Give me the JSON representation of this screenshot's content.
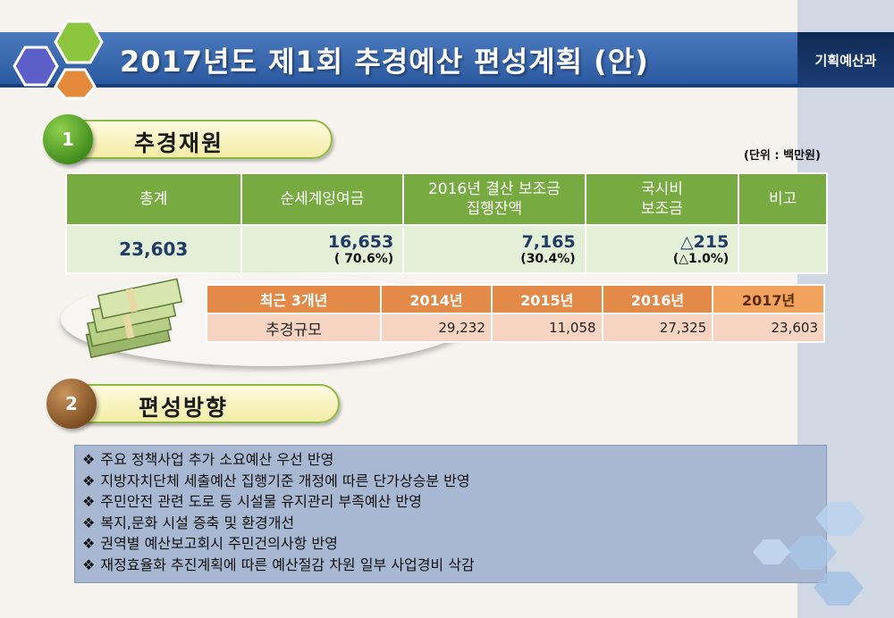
{
  "header": {
    "title": "2017년도 제1회 추경예산 편성계획 (안)",
    "department": "기획예산과"
  },
  "section1": {
    "number": "1",
    "label": "추경재원",
    "unit": "(단위 : 백만원)",
    "columns": [
      "총계",
      "순세계잉여금",
      "2016년 결산 보조금",
      "집행잔액",
      "국시비",
      "보조금",
      "비고"
    ],
    "row": {
      "total": "23,603",
      "surplus_value": "16,653",
      "surplus_pct": "( 70.6%)",
      "subsidy_value": "7,165",
      "subsidy_pct": "(30.4%)",
      "national_value": "△215",
      "national_pct": "(△1.0%)",
      "remarks": ""
    }
  },
  "recent": {
    "header_label": "최근 3개년",
    "years": [
      "2014년",
      "2015년",
      "2016년",
      "2017년"
    ],
    "row_label": "추경규모",
    "values": [
      "29,232",
      "11,058",
      "27,325",
      "23,603"
    ]
  },
  "section2": {
    "number": "2",
    "label": "편성방향",
    "bullet": "❖",
    "items": [
      "주요 정책사업 추가 소요예산 우선 반영",
      "지방자치단체 세출예산 집행기준 개정에 따른 단가상승분 반영",
      "주민안전 관련 도로 등 시설물 유지관리 부족예산 반영",
      "복지,문화 시설 증축 및 환경개선",
      "권역별 예산보고회시 주민건의사항 반영",
      "재정효율화 추진계획에 따른 예산절감 차원 일부 사업경비 삭감"
    ]
  },
  "colors": {
    "title_bar": "#2c5aa0",
    "table_header_green": "#77aa41",
    "table_body_green": "#e3efd6",
    "recent_header_orange": "#e48a48",
    "recent_body": "#f7d4c2",
    "direction_box": "#a9b8d2"
  }
}
